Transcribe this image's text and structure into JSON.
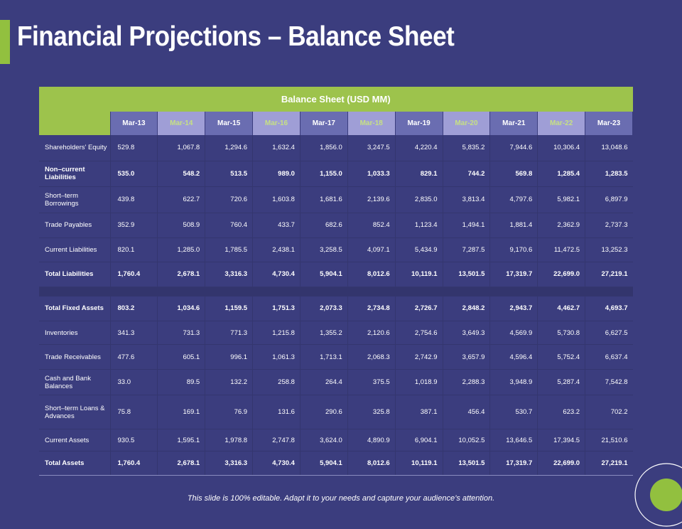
{
  "slide": {
    "title": "Financial Projections – Balance Sheet",
    "footer": "This slide is 100% editable. Adapt it to your needs and capture your audience’s attention."
  },
  "colors": {
    "background": "#3b3d7e",
    "accent_green": "#92c03f",
    "header_dark": "#6a6db1",
    "header_light": "#9f9ed6"
  },
  "table": {
    "caption": "Balance Sheet (USD MM)",
    "columns": [
      "Mar-13",
      "Mar-14",
      "Mar-15",
      "Mar-16",
      "Mar-17",
      "Mar-18",
      "Mar-19",
      "Mar-20",
      "Mar-21",
      "Mar-22",
      "Mar-23"
    ],
    "rows": [
      {
        "label": "Shareholders' Equity",
        "bold": false,
        "values": [
          "529.8",
          "1,067.8",
          "1,294.6",
          "1,632.4",
          "1,856.0",
          "3,247.5",
          "4,220.4",
          "5,835.2",
          "7,944.6",
          "10,306.4",
          "13,048.6"
        ]
      },
      {
        "label": "Non–current Liabilities",
        "bold": true,
        "values": [
          "535.0",
          "548.2",
          "513.5",
          "989.0",
          "1,155.0",
          "1,033.3",
          "829.1",
          "744.2",
          "569.8",
          "1,285.4",
          "1,283.5"
        ]
      },
      {
        "label": "Short–term Borrowings",
        "bold": false,
        "values": [
          "439.8",
          "622.7",
          "720.6",
          "1,603.8",
          "1,681.6",
          "2,139.6",
          "2,835.0",
          "3,813.4",
          "4,797.6",
          "5,982.1",
          "6,897.9"
        ]
      },
      {
        "label": "Trade Payables",
        "bold": false,
        "values": [
          "352.9",
          "508.9",
          "760.4",
          "433.7",
          "682.6",
          "852.4",
          "1,123.4",
          "1,494.1",
          "1,881.4",
          "2,362.9",
          "2,737.3"
        ]
      },
      {
        "label": "Current Liabilities",
        "bold": false,
        "values": [
          "820.1",
          "1,285.0",
          "1,785.5",
          "2,438.1",
          "3,258.5",
          "4,097.1",
          "5,434.9",
          "7,287.5",
          "9,170.6",
          "11,472.5",
          "13,252.3"
        ]
      },
      {
        "label": "Total Liabilities",
        "bold": true,
        "values": [
          "1,760.4",
          "2,678.1",
          "3,316.3",
          "4,730.4",
          "5,904.1",
          "8,012.6",
          "10,119.1",
          "13,501.5",
          "17,319.7",
          "22,699.0",
          "27,219.1"
        ]
      },
      {
        "label": "Total Fixed Assets",
        "bold": true,
        "values": [
          "803.2",
          "1,034.6",
          "1,159.5",
          "1,751.3",
          "2,073.3",
          "2,734.8",
          "2,726.7",
          "2,848.2",
          "2,943.7",
          "4,462.7",
          "4,693.7"
        ]
      },
      {
        "label": "Inventories",
        "bold": false,
        "values": [
          "341.3",
          "731.3",
          "771.3",
          "1,215.8",
          "1,355.2",
          "2,120.6",
          "2,754.6",
          "3,649.3",
          "4,569.9",
          "5,730.8",
          "6,627.5"
        ]
      },
      {
        "label": "Trade Receivables",
        "bold": false,
        "values": [
          "477.6",
          "605.1",
          "996.1",
          "1,061.3",
          "1,713.1",
          "2,068.3",
          "2,742.9",
          "3,657.9",
          "4,596.4",
          "5,752.4",
          "6,637.4"
        ]
      },
      {
        "label": "Cash and Bank Balances",
        "bold": false,
        "values": [
          "33.0",
          "89.5",
          "132.2",
          "258.8",
          "264.4",
          "375.5",
          "1,018.9",
          "2,288.3",
          "3,948.9",
          "5,287.4",
          "7,542.8"
        ]
      },
      {
        "label": "Short–term Loans & Advances",
        "bold": false,
        "values": [
          "75.8",
          "169.1",
          "76.9",
          "131.6",
          "290.6",
          "325.8",
          "387.1",
          "456.4",
          "530.7",
          "623.2",
          "702.2"
        ]
      },
      {
        "label": "Current Assets",
        "bold": false,
        "values": [
          "930.5",
          "1,595.1",
          "1,978.8",
          "2,747.8",
          "3,624.0",
          "4,890.9",
          "6,904.1",
          "10,052.5",
          "13,646.5",
          "17,394.5",
          "21,510.6"
        ]
      },
      {
        "label": "Total Assets",
        "bold": true,
        "values": [
          "1,760.4",
          "2,678.1",
          "3,316.3",
          "4,730.4",
          "5,904.1",
          "8,012.6",
          "10,119.1",
          "13,501.5",
          "17,319.7",
          "22,699.0",
          "27,219.1"
        ]
      }
    ]
  }
}
